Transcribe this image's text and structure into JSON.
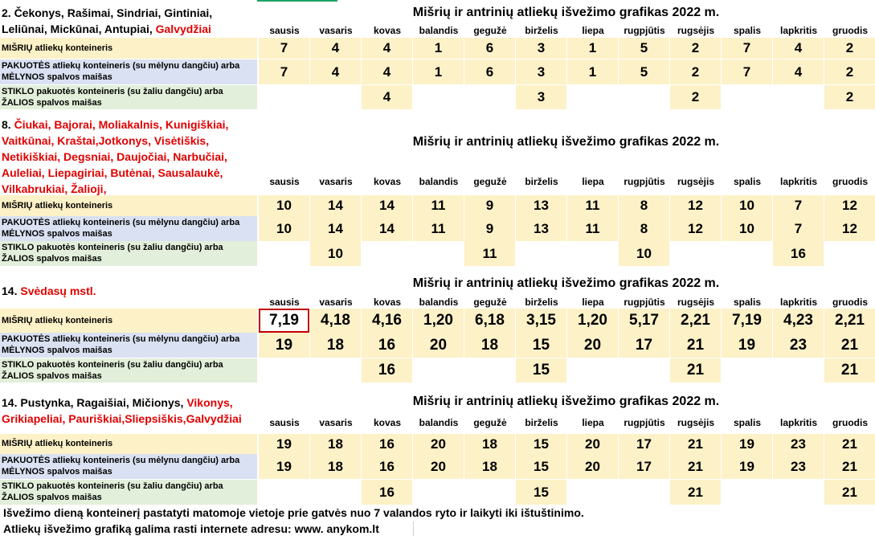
{
  "title": "Mišrių ir antrinių atliekų išvežimo grafikas 2022 m.",
  "months": [
    "sausis",
    "vasaris",
    "kovas",
    "balandis",
    "gegužė",
    "birželis",
    "liepa",
    "rugpjūtis",
    "rugsėjis",
    "spalis",
    "lapkritis",
    "gruodis"
  ],
  "row_labels": {
    "mixed": "MIŠRIŲ atliekų konteineris",
    "packaging_1": "PAKUOTĖS atliekų konteineris (su mėlynu dangčiu) arba",
    "packaging_2": "MĖLYNOS spalvos maišas",
    "glass_1": "STIKLO pakuotės konteineris (su žaliu dangčiu) arba",
    "glass_2": "ŽALIOS spalvos maišas"
  },
  "sections": [
    {
      "location_black": "2. Čekonys, Rašimai, Sindriai, Gintiniai, Leliūnai, Mickūnai, Antupiai,",
      "location_red": " Galvydžiai",
      "mixed": [
        "7",
        "4",
        "4",
        "1",
        "6",
        "3",
        "1",
        "5",
        "2",
        "7",
        "4",
        "2"
      ],
      "packaging": [
        "7",
        "4",
        "4",
        "1",
        "6",
        "3",
        "1",
        "5",
        "2",
        "7",
        "4",
        "2"
      ],
      "glass": [
        "",
        "",
        "4",
        "",
        "",
        "3",
        "",
        "",
        "2",
        "",
        "",
        "2"
      ]
    },
    {
      "location_black": "8.",
      "location_red": " Čiukai, Bajorai, Moliakalnis, Kunigiškiai, Vaitkūnai, Kraštai,Jotkonys, Visėtiškis, Netikiškiai, Degsniai, Daujočiai, Narbučiai, Auleliai, Liepagiriai, Butėnai, Sausalaukė, Vilkabrukiai, Žalioji,",
      "mixed": [
        "10",
        "14",
        "14",
        "11",
        "9",
        "13",
        "11",
        "8",
        "12",
        "10",
        "7",
        "12"
      ],
      "packaging": [
        "10",
        "14",
        "14",
        "11",
        "9",
        "13",
        "11",
        "8",
        "12",
        "10",
        "7",
        "12"
      ],
      "glass": [
        "",
        "10",
        "",
        "",
        "11",
        "",
        "",
        "10",
        "",
        "",
        "16",
        ""
      ]
    },
    {
      "location_black": "14.",
      "location_red": " Svėdasų mstl.",
      "mixed": [
        "7,19",
        "4,18",
        "4,16",
        "1,20",
        "6,18",
        "3,15",
        "1,20",
        "5,17",
        "2,21",
        "7,19",
        "4,23",
        "2,21"
      ],
      "packaging": [
        "19",
        "18",
        "16",
        "20",
        "18",
        "15",
        "20",
        "17",
        "21",
        "19",
        "23",
        "21"
      ],
      "glass": [
        "",
        "",
        "16",
        "",
        "",
        "15",
        "",
        "",
        "21",
        "",
        "",
        "21"
      ]
    },
    {
      "location_black": "14. Pustynka, Ragaišiai, Mičionys,",
      "location_red": " Vikonys, Grikiapeliai, Pauriškiai,Sliepsiškis,Galvydžiai",
      "mixed": [
        "19",
        "18",
        "16",
        "20",
        "18",
        "15",
        "20",
        "17",
        "21",
        "19",
        "23",
        "21"
      ],
      "packaging": [
        "19",
        "18",
        "16",
        "20",
        "18",
        "15",
        "20",
        "17",
        "21",
        "19",
        "23",
        "21"
      ],
      "glass": [
        "",
        "",
        "16",
        "",
        "",
        "15",
        "",
        "",
        "21",
        "",
        "",
        "21"
      ]
    }
  ],
  "notes": [
    "Išvežimo dieną konteinerį pastatyti matomoje vietoje prie gatvės nuo 7 valandos ryto ir laikyti iki ištuštinimo.",
    "Atliekų išvežimo grafiką galima rasti internete adresu: www. anykom.lt"
  ]
}
